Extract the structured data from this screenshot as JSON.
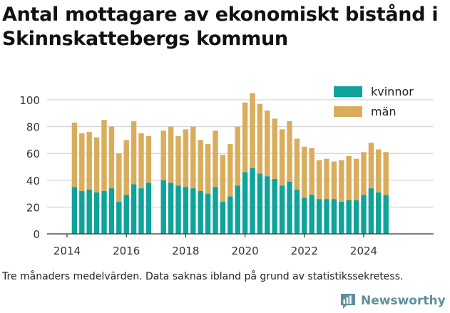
{
  "title": "Antal mottagare av ekonomiskt bistånd i Skinnskattebergs kommun",
  "note": "Tre månaders medelvärden. Data saknas ibland på grund av statistikssekretess.",
  "brand": {
    "name": "Newsworthy",
    "icon": "newsworthy-logo-icon"
  },
  "colors": {
    "kvinnor": "#0fa39a",
    "man": "#d9ad5c",
    "axis": "#333333",
    "grid": "#cccccc",
    "brand": "#5f8f9c"
  },
  "chart_data": {
    "type": "bar",
    "stacked": true,
    "title": "Antal mottagare av ekonomiskt bistånd i Skinnskattebergs kommun",
    "xlabel": "",
    "ylabel": "",
    "ylim": [
      0,
      110
    ],
    "yticks": [
      0,
      20,
      40,
      60,
      80,
      100
    ],
    "xticks": [
      "2014",
      "2016",
      "2018",
      "2020",
      "2022",
      "2024"
    ],
    "grid": true,
    "legend_position": "top-right",
    "legend": [
      "kvinnor",
      "män"
    ],
    "x": [
      "2014-04",
      "2014-07",
      "2014-10",
      "2015-01",
      "2015-04",
      "2015-07",
      "2015-10",
      "2016-01",
      "2016-04",
      "2016-07",
      "2016-10",
      "2017-04",
      "2017-07",
      "2017-10",
      "2018-01",
      "2018-04",
      "2018-07",
      "2018-10",
      "2019-01",
      "2019-04",
      "2019-07",
      "2019-10",
      "2020-01",
      "2020-04",
      "2020-07",
      "2020-10",
      "2021-01",
      "2021-04",
      "2021-07",
      "2021-10",
      "2022-01",
      "2022-04",
      "2022-07",
      "2022-10",
      "2023-01",
      "2023-04",
      "2023-07",
      "2023-10",
      "2024-01",
      "2024-04",
      "2024-07",
      "2024-10"
    ],
    "series": [
      {
        "name": "kvinnor",
        "values": [
          35,
          32,
          33,
          31,
          32,
          34,
          24,
          29,
          37,
          34,
          38,
          40,
          38,
          36,
          35,
          34,
          32,
          30,
          35,
          24,
          28,
          36,
          46,
          49,
          45,
          43,
          41,
          36,
          39,
          33,
          27,
          29,
          26,
          26,
          26,
          24,
          25,
          25,
          29,
          34,
          31,
          29
        ]
      },
      {
        "name": "män",
        "values": [
          48,
          43,
          43,
          41,
          53,
          46,
          36,
          41,
          47,
          41,
          35,
          37,
          42,
          37,
          43,
          46,
          38,
          37,
          42,
          35,
          39,
          44,
          52,
          56,
          52,
          49,
          45,
          42,
          45,
          38,
          38,
          35,
          29,
          30,
          28,
          31,
          33,
          31,
          32,
          34,
          32,
          32
        ]
      }
    ]
  }
}
